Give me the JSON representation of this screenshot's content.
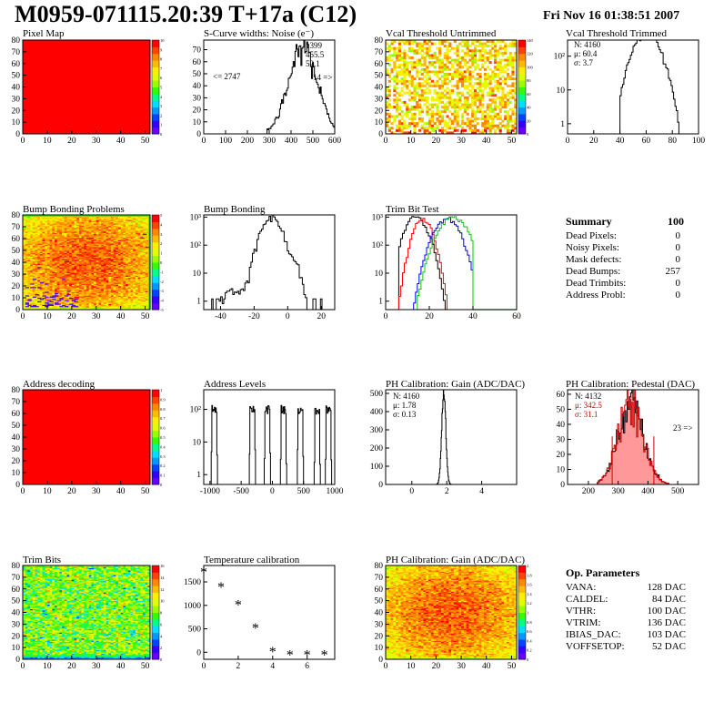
{
  "header": {
    "title": "M0959-071115.20:39 T+17a (C12)",
    "date": "Fri Nov 16 01:38:51 2007"
  },
  "palette": [
    "#ffffff",
    "#6600ff",
    "#3300ff",
    "#0044ff",
    "#0099ff",
    "#00ddff",
    "#00ff88",
    "#33ff00",
    "#99ff00",
    "#ddff00",
    "#ffee00",
    "#ffbb00",
    "#ff8800",
    "#ff4400",
    "#ff0000"
  ],
  "chart_data": [
    {
      "id": "pixel-map",
      "type": "heatmap",
      "title": "Pixel Map",
      "x_ticks": [
        "0",
        "10",
        "20",
        "30",
        "40",
        "50"
      ],
      "y_ticks": [
        "0",
        "10",
        "20",
        "30",
        "40",
        "50",
        "60",
        "70",
        "80"
      ],
      "xlim": [
        0,
        52
      ],
      "ylim": [
        0,
        80
      ],
      "uniform_value": 10,
      "z_ticks": [
        "0",
        "1",
        "2",
        "3",
        "4",
        "5",
        "6",
        "7",
        "8",
        "9",
        "10"
      ],
      "zlim": [
        0,
        10
      ]
    },
    {
      "id": "scurve-widths",
      "type": "line",
      "title": "S-Curve widths: Noise (e⁻)",
      "x_ticks": [
        "0",
        "100",
        "200",
        "300",
        "400",
        "500",
        "600"
      ],
      "y_ticks": [
        "0",
        "10",
        "20",
        "30",
        "40",
        "50",
        "60",
        "70"
      ],
      "xlim": [
        0,
        600
      ],
      "ylim": [
        0,
        78
      ],
      "xmin_data": 290,
      "xmax_data": 600,
      "peak_x": 455,
      "peak_y": 72,
      "sigma": 65,
      "stats": [
        "1399",
        "455.5",
        "52.1"
      ],
      "underflow_label": "<= 2747",
      "overflow_label": "14 =>"
    },
    {
      "id": "vcal-untrimmed",
      "type": "heatmap",
      "title": "Vcal Threshold Untrimmed",
      "x_ticks": [
        "0",
        "10",
        "20",
        "30",
        "40",
        "50"
      ],
      "y_ticks": [
        "0",
        "10",
        "20",
        "30",
        "40",
        "50",
        "60",
        "70",
        "80"
      ],
      "xlim": [
        0,
        52
      ],
      "ylim": [
        0,
        80
      ],
      "nx": 52,
      "ny": 40,
      "z_ticks": [
        "0",
        "20",
        "40",
        "60",
        "80",
        "100",
        "120",
        "140"
      ],
      "zlim": [
        0,
        140
      ]
    },
    {
      "id": "vcal-trimmed",
      "type": "line",
      "title": "Vcal Threshold Trimmed",
      "x_ticks": [
        "0",
        "20",
        "40",
        "60",
        "80",
        "100"
      ],
      "y_ticks": [
        "1",
        "10",
        "10²"
      ],
      "xlim": [
        0,
        100
      ],
      "ylim_log": [
        0.5,
        300
      ],
      "log_y": true,
      "mean": 60.4,
      "sigma": 3.7,
      "entries": 4160,
      "stats": [
        "N: 4160",
        "μ: 60.4",
        "σ:  3.7"
      ]
    },
    {
      "id": "bump-bonding-problems",
      "type": "heatmap",
      "title": "Bump Bonding Problems",
      "x_ticks": [
        "0",
        "10",
        "20",
        "30",
        "40",
        "50"
      ],
      "y_ticks": [
        "0",
        "10",
        "20",
        "30",
        "40",
        "50",
        "60",
        "70",
        "80"
      ],
      "xlim": [
        0,
        52
      ],
      "ylim": [
        0,
        80
      ],
      "z_ticks": [
        "-5",
        "-4",
        "-3",
        "-2",
        "-1",
        "0",
        "1",
        "2",
        "3",
        "4",
        "5"
      ],
      "zlim": [
        -5,
        5
      ]
    },
    {
      "id": "bump-bonding",
      "type": "line",
      "title": "Bump Bonding",
      "x_ticks": [
        "-40",
        "-20",
        "0",
        "20"
      ],
      "y_ticks": [
        "1",
        "10",
        "10²",
        "10³"
      ],
      "xlim": [
        -50,
        28
      ],
      "ylim_log": [
        0.5,
        1200
      ],
      "log_y": true,
      "main_peak_x": -10,
      "main_peak_y": 900,
      "second_peak_x": 2,
      "second_peak_y": 30
    },
    {
      "id": "trim-bit-test",
      "type": "line",
      "title": "Trim Bit Test",
      "x_ticks": [
        "0",
        "20",
        "40",
        "60"
      ],
      "y_ticks": [
        "1",
        "10",
        "10²",
        "10³"
      ],
      "xlim": [
        0,
        60
      ],
      "ylim_log": [
        0.5,
        1200
      ],
      "log_y": true,
      "series": [
        {
          "color": "#000000",
          "center": 14,
          "width": 3.5,
          "peak": 1000
        },
        {
          "color": "#ff0000",
          "center": 17,
          "width": 3,
          "peak": 800
        },
        {
          "color": "#0000ff",
          "center": 28,
          "width": 4,
          "peak": 900
        },
        {
          "color": "#00cc00",
          "center": 31,
          "width": 4.5,
          "peak": 1000
        }
      ]
    },
    {
      "id": "address-decoding",
      "type": "heatmap",
      "title": "Address decoding",
      "x_ticks": [
        "0",
        "10",
        "20",
        "30",
        "40",
        "50"
      ],
      "y_ticks": [
        "0",
        "10",
        "20",
        "30",
        "40",
        "50",
        "60",
        "70",
        "80"
      ],
      "xlim": [
        0,
        52
      ],
      "ylim": [
        0,
        80
      ],
      "uniform_value": 1,
      "z_ticks": [
        "0",
        "0.1",
        "0.2",
        "0.3",
        "0.4",
        "0.5",
        "0.6",
        "0.7",
        "0.8",
        "0.9",
        "1"
      ],
      "zlim": [
        0,
        1
      ]
    },
    {
      "id": "address-levels",
      "type": "line",
      "title": "Address Levels",
      "x_ticks": [
        "-1000",
        "-500",
        "0",
        "500",
        "1000"
      ],
      "y_ticks": [
        "1",
        "10",
        "10²"
      ],
      "xlim": [
        -1100,
        1000
      ],
      "ylim_log": [
        0.5,
        400
      ],
      "log_y": true,
      "peaks": [
        -930,
        -320,
        -80,
        180,
        450,
        720,
        900
      ],
      "peak_height": 120
    },
    {
      "id": "ph-gain",
      "type": "line",
      "title": "PH Calibration: Gain (ADC/DAC)",
      "x_ticks": [
        "0",
        "2",
        "4"
      ],
      "y_ticks": [
        "0",
        "100",
        "200",
        "300",
        "400",
        "500"
      ],
      "xlim": [
        -1.5,
        6
      ],
      "ylim": [
        0,
        520
      ],
      "mean": 1.78,
      "sigma": 0.13,
      "peak_y": 500,
      "stats": [
        "N: 4160",
        "μ: 1.78",
        "σ: 0.13"
      ]
    },
    {
      "id": "ph-pedestal",
      "type": "line",
      "title": "PH Calibration: Pedestal (DAC)",
      "x_ticks": [
        "200",
        "300",
        "400",
        "500"
      ],
      "y_ticks": [
        "0",
        "10",
        "20",
        "30",
        "40",
        "50",
        "60"
      ],
      "xlim": [
        130,
        570
      ],
      "ylim": [
        0,
        63
      ],
      "mean": 342.5,
      "sigma": 31.1,
      "peak_y": 54,
      "stats": [
        "N: 4132",
        "μ: 342.5",
        "σ: 31.1"
      ],
      "overflow_label": "23 =>",
      "cut_lines": [
        280,
        420
      ],
      "cut_height": 32
    },
    {
      "id": "trim-bits",
      "type": "heatmap",
      "title": "Trim Bits",
      "x_ticks": [
        "0",
        "10",
        "20",
        "30",
        "40",
        "50"
      ],
      "y_ticks": [
        "0",
        "10",
        "20",
        "30",
        "40",
        "50",
        "60",
        "70",
        "80"
      ],
      "xlim": [
        0,
        52
      ],
      "ylim": [
        0,
        80
      ],
      "z_ticks": [
        "0",
        "2",
        "4",
        "6",
        "8",
        "10",
        "12",
        "14",
        "16"
      ],
      "zlim": [
        0,
        16
      ]
    },
    {
      "id": "temperature-calibration",
      "type": "scatter",
      "title": "Temperature calibration",
      "x_ticks": [
        "0",
        "2",
        "4",
        "6"
      ],
      "y_ticks": [
        "0",
        "500",
        "1000",
        "1500"
      ],
      "xlim": [
        0,
        7.6
      ],
      "ylim": [
        -150,
        1850
      ],
      "x": [
        0,
        1,
        2,
        3,
        4,
        5,
        6,
        7
      ],
      "y": [
        1720,
        1400,
        1020,
        530,
        20,
        -40,
        -40,
        -40
      ]
    },
    {
      "id": "ph-gain-map",
      "type": "heatmap",
      "title": "PH Calibration: Gain (ADC/DAC)",
      "x_ticks": [
        "0",
        "10",
        "20",
        "30",
        "40",
        "50"
      ],
      "y_ticks": [
        "0",
        "10",
        "20",
        "30",
        "40",
        "50",
        "60",
        "70",
        "80"
      ],
      "xlim": [
        0,
        52
      ],
      "ylim": [
        0,
        80
      ],
      "z_ticks": [
        "0",
        "0.2",
        "0.4",
        "0.6",
        "0.8",
        "1",
        "1.2",
        "1.4",
        "1.6",
        "1.8",
        "2"
      ],
      "zlim": [
        0,
        2
      ]
    }
  ],
  "summary": {
    "title": "Summary",
    "total": "100",
    "rows": [
      {
        "label": "Dead Pixels:",
        "value": "0"
      },
      {
        "label": "Noisy Pixels:",
        "value": "0"
      },
      {
        "label": "Mask defects:",
        "value": "0"
      },
      {
        "label": "Dead Bumps:",
        "value": "257"
      },
      {
        "label": "Dead Trimbits:",
        "value": "0"
      },
      {
        "label": "Address Probl:",
        "value": "0"
      }
    ]
  },
  "op_parameters": {
    "title": "Op. Parameters",
    "rows": [
      {
        "label": "VANA:",
        "value": "128 DAC"
      },
      {
        "label": "CALDEL:",
        "value": "84 DAC"
      },
      {
        "label": "VTHR:",
        "value": "100 DAC"
      },
      {
        "label": "VTRIM:",
        "value": "136 DAC"
      },
      {
        "label": "IBIAS_DAC:",
        "value": "103 DAC"
      },
      {
        "label": "VOFFSETOP:",
        "value": "52 DAC"
      }
    ]
  }
}
